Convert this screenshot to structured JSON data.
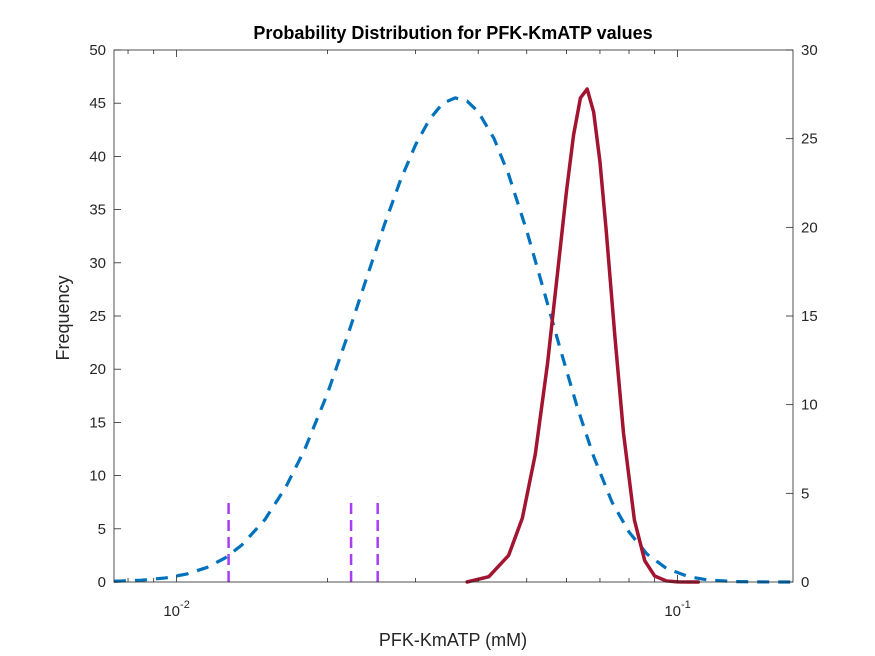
{
  "chart_data": {
    "type": "line",
    "title": "Probability Distribution for PFK-KmATP values",
    "xlabel": "PFK-KmATP (mM)",
    "ylabel": "Frequency",
    "xscale": "log",
    "xlim": [
      0.0075,
      0.17
    ],
    "ylim_left": [
      0,
      50
    ],
    "ylim_right": [
      0,
      30
    ],
    "grid": false,
    "legend": "none",
    "x_ticks": [
      {
        "value": 0.01,
        "base": "10",
        "exp": "-2"
      },
      {
        "value": 0.1,
        "base": "10",
        "exp": "-1"
      }
    ],
    "y_ticks_left": [
      "0",
      "5",
      "10",
      "15",
      "20",
      "25",
      "30",
      "35",
      "40",
      "45",
      "50"
    ],
    "y_ticks_right": [
      "0",
      "5",
      "10",
      "15",
      "20",
      "25",
      "30"
    ],
    "series": [
      {
        "axis": "left",
        "style": "dashed",
        "color": "#0072BD",
        "x": [
          0.0075,
          0.0085,
          0.0095,
          0.0105,
          0.0115,
          0.0125,
          0.0135,
          0.015,
          0.0165,
          0.018,
          0.02,
          0.022,
          0.024,
          0.026,
          0.028,
          0.03,
          0.032,
          0.034,
          0.036,
          0.038,
          0.04,
          0.043,
          0.046,
          0.05,
          0.054,
          0.058,
          0.063,
          0.068,
          0.074,
          0.08,
          0.087,
          0.095,
          0.105,
          0.115,
          0.13,
          0.15,
          0.17
        ],
        "y": [
          0.07,
          0.17,
          0.38,
          0.76,
          1.37,
          2.26,
          3.48,
          5.85,
          8.88,
          12.4,
          17.7,
          23.3,
          28.7,
          33.6,
          37.8,
          41.1,
          43.5,
          45.0,
          45.5,
          45.2,
          44.2,
          41.7,
          38.3,
          33.0,
          27.5,
          22.3,
          16.5,
          11.8,
          7.5,
          4.7,
          2.6,
          1.28,
          0.51,
          0.19,
          0.04,
          0.005,
          0.0005
        ]
      },
      {
        "axis": "right",
        "style": "solid",
        "color": "#A2142F",
        "x": [
          0.038,
          0.042,
          0.046,
          0.049,
          0.052,
          0.055,
          0.058,
          0.06,
          0.062,
          0.064,
          0.066,
          0.068,
          0.07,
          0.072,
          0.075,
          0.078,
          0.082,
          0.086,
          0.09,
          0.095,
          0.1,
          0.105,
          0.11
        ],
        "y": [
          0.0,
          0.3,
          1.5,
          3.6,
          7.2,
          12.3,
          18.2,
          22.0,
          25.2,
          27.3,
          27.8,
          26.5,
          23.7,
          19.9,
          13.8,
          8.4,
          3.5,
          1.2,
          0.34,
          0.06,
          0.008,
          0.001,
          0.0
        ]
      }
    ],
    "vertical_lines": {
      "axis": "left",
      "style": "dashed",
      "color": "#A83DF5",
      "x": [
        0.0127,
        0.0223,
        0.0252
      ],
      "ymax": 8
    }
  }
}
